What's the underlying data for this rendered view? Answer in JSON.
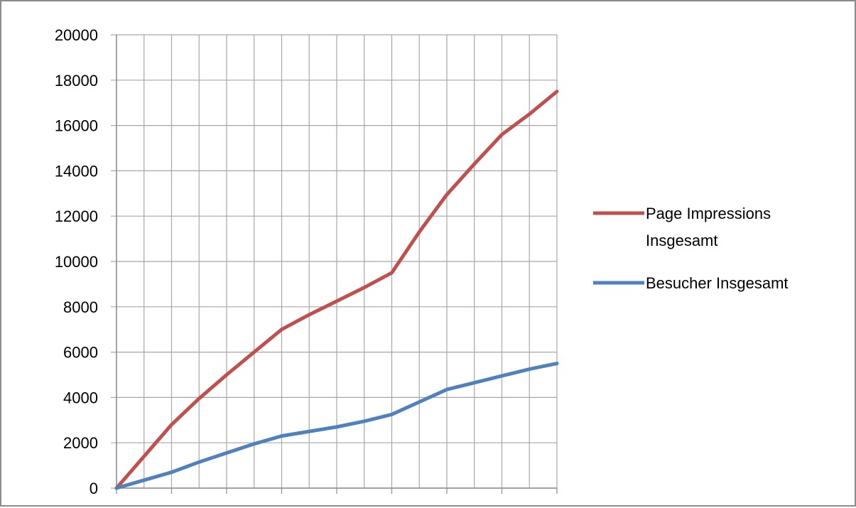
{
  "chart_data": {
    "type": "line",
    "title": "",
    "xlabel": "",
    "ylabel": "",
    "x": [
      0,
      1,
      2,
      3,
      4,
      5,
      6,
      7,
      8,
      9,
      10,
      11,
      12,
      13,
      14,
      15,
      16
    ],
    "xlim": [
      0,
      16
    ],
    "ylim": [
      0,
      20000
    ],
    "yticks": [
      "0",
      "2000",
      "4000",
      "6000",
      "8000",
      "10000",
      "12000",
      "14000",
      "16000",
      "18000",
      "20000"
    ],
    "yticks_values": [
      0,
      2000,
      4000,
      6000,
      8000,
      10000,
      12000,
      14000,
      16000,
      18000,
      20000
    ],
    "grid": true,
    "legend_position": "right",
    "series": [
      {
        "name": "Page Impressions Insgesamt",
        "legend_lines": [
          "Page Impressions",
          "Insgesamt"
        ],
        "color": "#C0504D",
        "values": [
          0,
          1400,
          2800,
          3950,
          5000,
          6000,
          7000,
          7650,
          8250,
          8850,
          9500,
          11300,
          12950,
          14300,
          15600,
          16500,
          17500
        ]
      },
      {
        "name": "Besucher Insgesamt",
        "legend_lines": [
          "Besucher Insgesamt"
        ],
        "color": "#4F81BD",
        "values": [
          0,
          350,
          700,
          1150,
          1550,
          1950,
          2300,
          2500,
          2700,
          2950,
          3250,
          3800,
          4350,
          4650,
          4950,
          5250,
          5500
        ]
      }
    ]
  }
}
